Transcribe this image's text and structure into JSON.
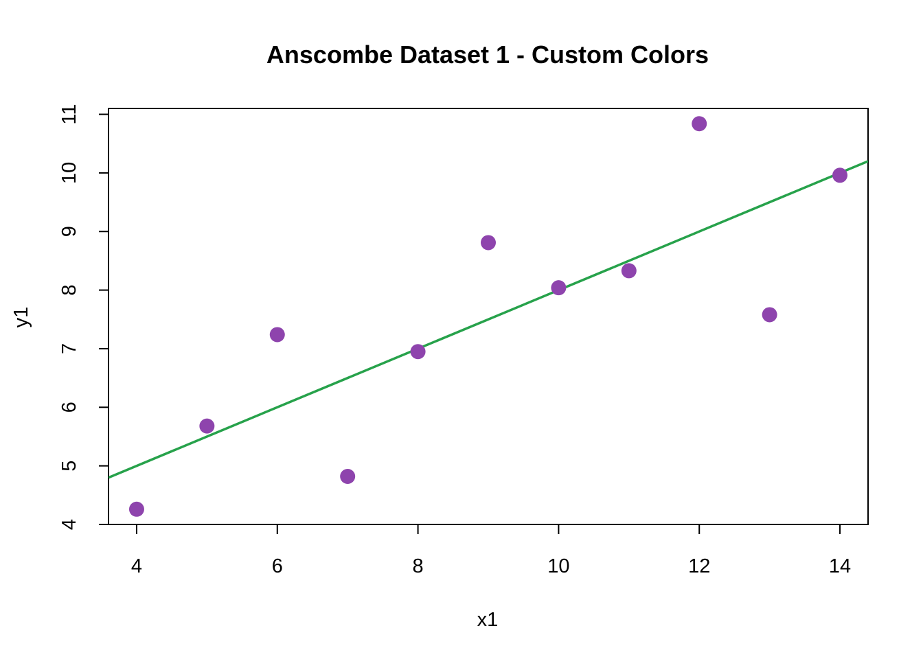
{
  "chart_data": {
    "type": "scatter",
    "title": "Anscombe Dataset 1 - Custom Colors",
    "xlabel": "x1",
    "ylabel": "y1",
    "xlim": [
      3.6,
      14.4
    ],
    "ylim": [
      4.0,
      11.1
    ],
    "x_ticks": [
      4,
      6,
      8,
      10,
      12,
      14
    ],
    "y_ticks": [
      4,
      5,
      6,
      7,
      8,
      9,
      10,
      11
    ],
    "grid": false,
    "point_color": "#8E44AD",
    "line_color": "#27A24B",
    "points": {
      "x": [
        4,
        5,
        6,
        7,
        8,
        9,
        10,
        11,
        12,
        13,
        14
      ],
      "y": [
        4.26,
        5.68,
        7.24,
        4.82,
        6.95,
        8.81,
        8.04,
        8.33,
        10.84,
        7.58,
        9.96
      ]
    },
    "regression_line": {
      "intercept": 3.0,
      "slope": 0.5
    }
  }
}
